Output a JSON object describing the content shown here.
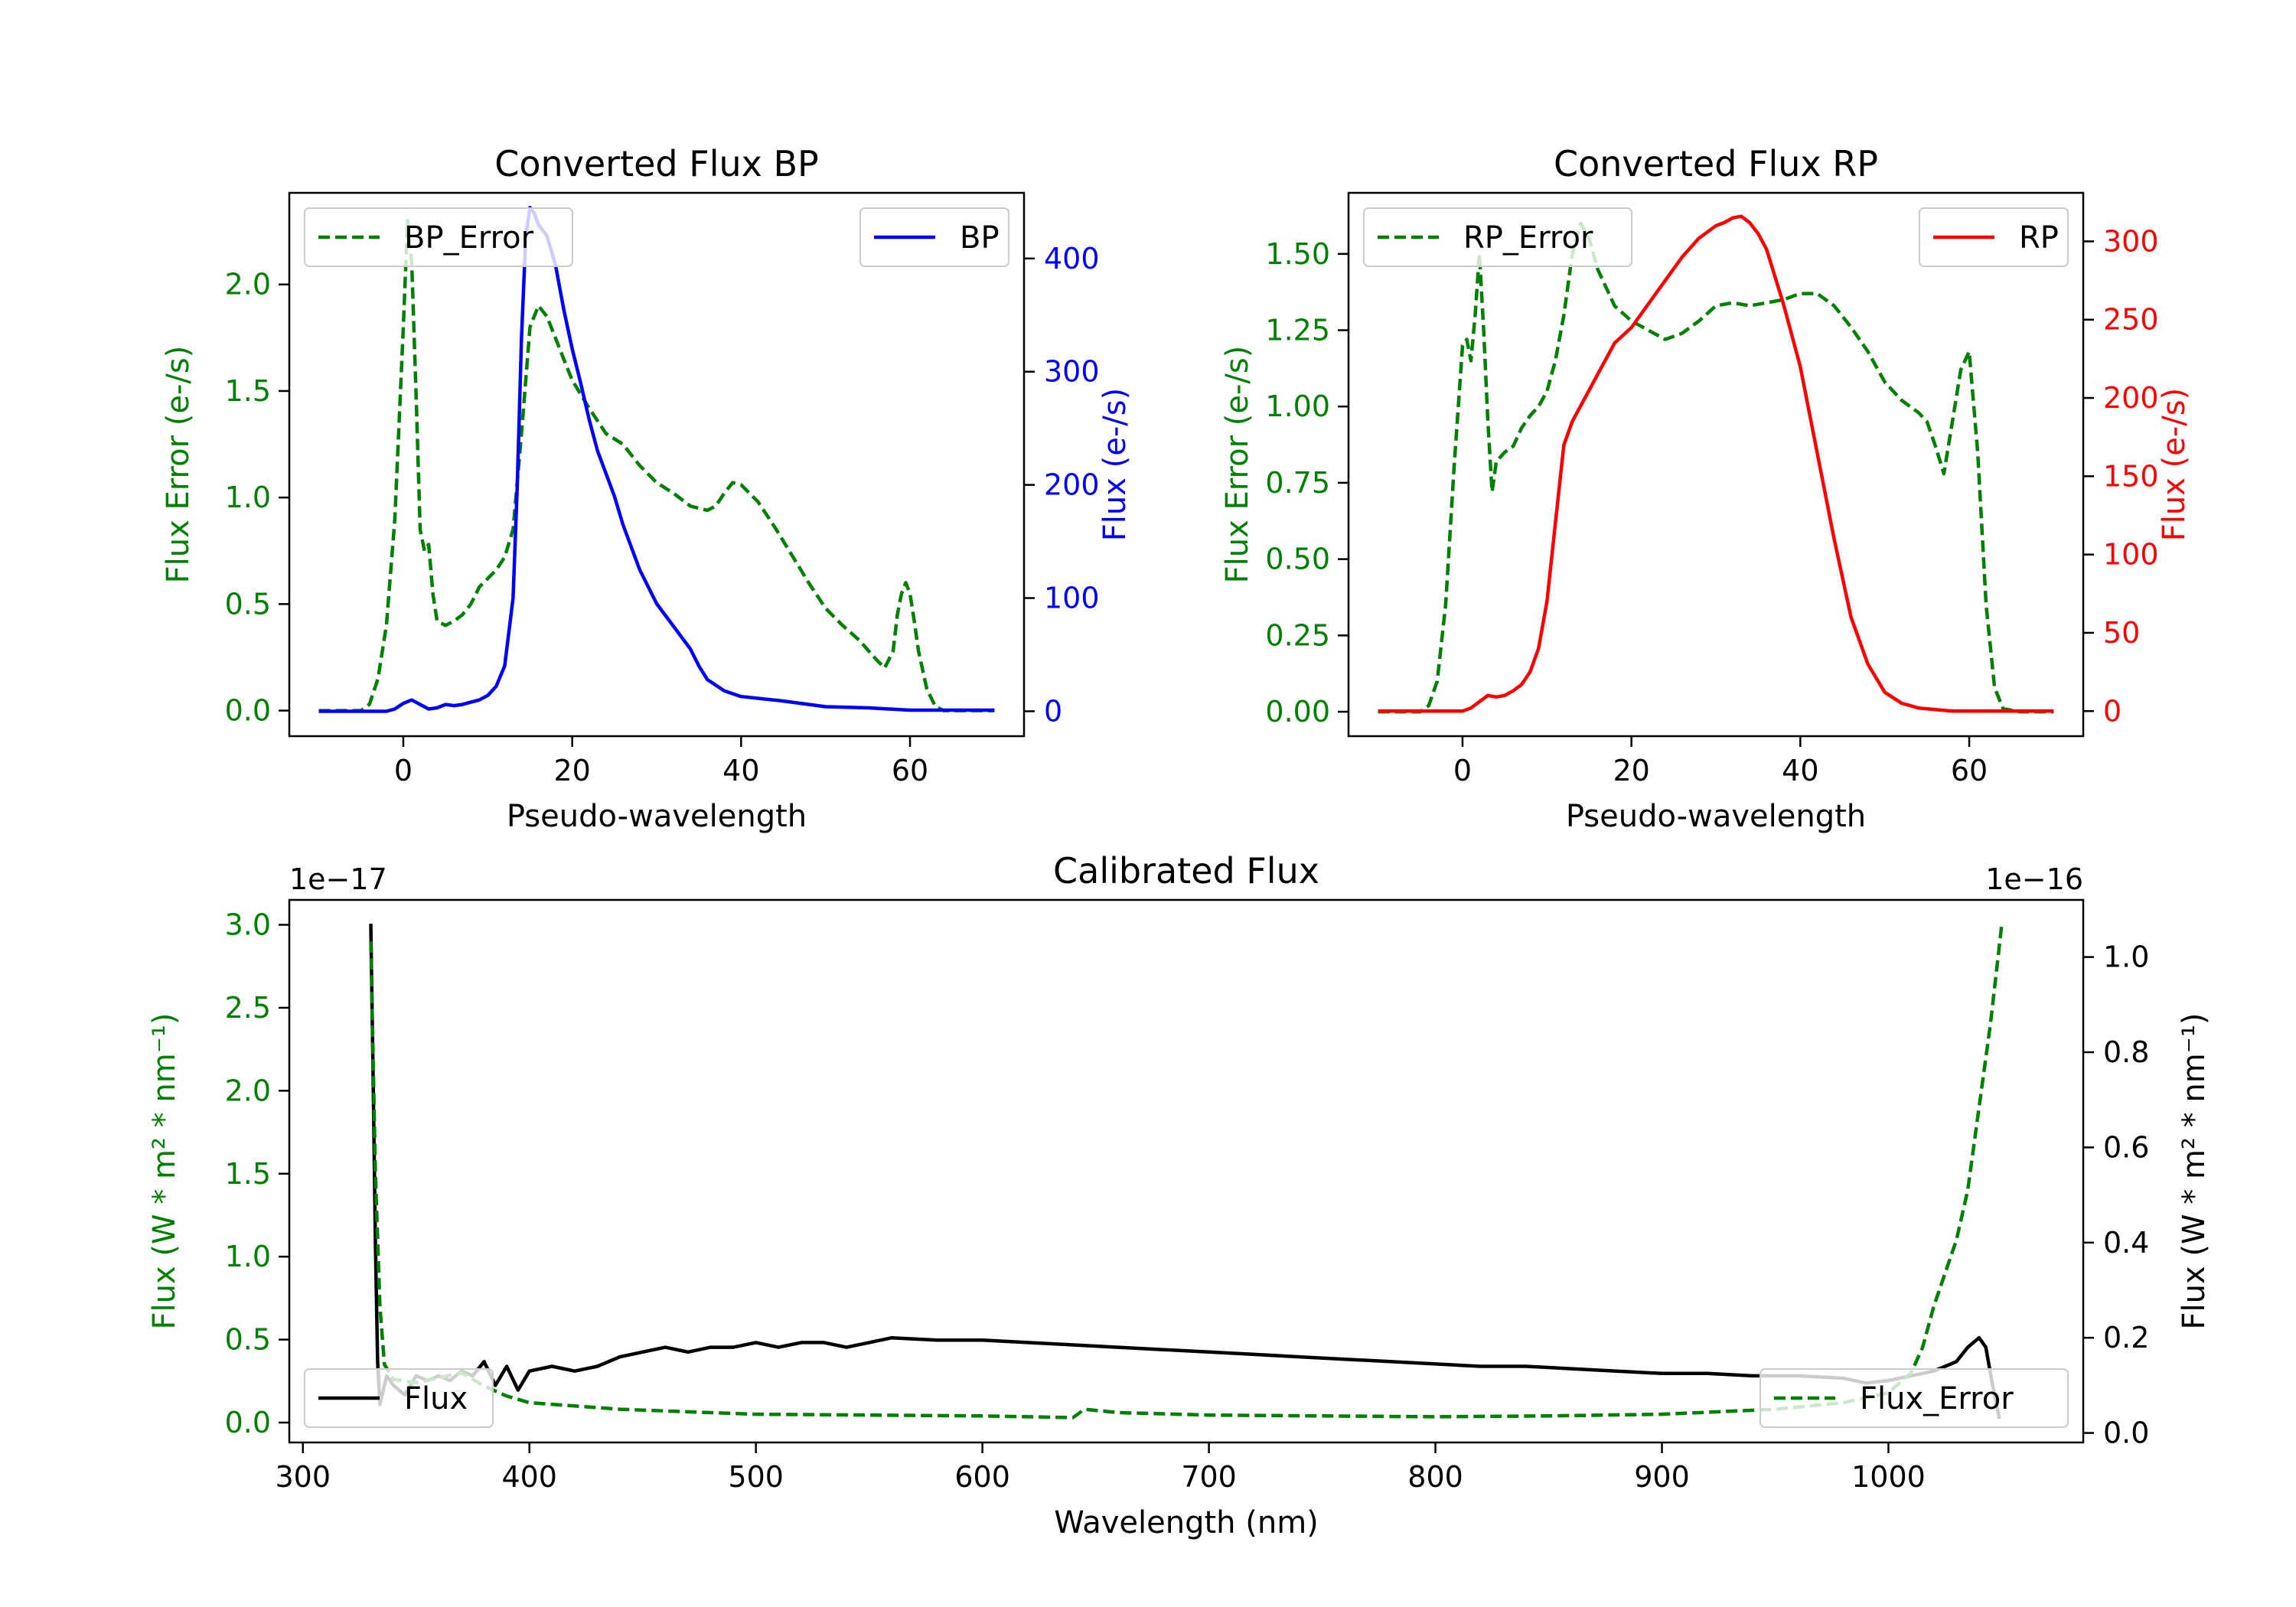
{
  "figure": {
    "background": "#ffffff"
  },
  "colors": {
    "error": "#008000",
    "bp": "#0000ff",
    "rp": "#ff0000",
    "flux": "#000000",
    "axis": "#000000"
  },
  "chart_data": [
    {
      "id": "bp",
      "type": "line",
      "title": "Converted Flux BP",
      "xlabel": "Pseudo-wavelength",
      "ylabel_left": "Flux Error (e-/s)",
      "ylabel_right": "Flux (e-/s)",
      "xlim": [
        -13.5,
        73.5
      ],
      "ylim_left": [
        -0.12,
        2.43
      ],
      "ylim_right": [
        -22,
        458
      ],
      "xticks": [
        0,
        20,
        40,
        60
      ],
      "yticks_left": [
        0.0,
        0.5,
        1.0,
        1.5,
        2.0
      ],
      "yticks_left_labels": [
        "0.0",
        "0.5",
        "1.0",
        "1.5",
        "2.0"
      ],
      "yticks_right": [
        0,
        100,
        200,
        300,
        400
      ],
      "yticks_right_labels": [
        "0",
        "100",
        "200",
        "300",
        "400"
      ],
      "left_color": "#008000",
      "right_color": "#0000ff",
      "legend_left": "top-left",
      "legend_right": "top-right",
      "series": [
        {
          "name": "BP_Error",
          "axis": "left",
          "style": "dashed",
          "color": "#008000",
          "x": [
            -10,
            -5,
            -4,
            -3,
            -2,
            -1,
            0,
            0.5,
            1,
            1.5,
            2,
            2.5,
            3,
            3.5,
            4,
            5,
            6,
            7,
            8,
            9,
            10,
            11,
            12,
            13,
            14,
            15,
            16,
            17,
            18,
            19,
            20,
            22,
            24,
            26,
            28,
            30,
            32,
            34,
            36,
            37,
            38,
            39,
            40,
            41,
            42,
            44,
            46,
            48,
            50,
            52,
            54,
            56,
            57,
            58,
            58.5,
            59,
            59.5,
            60,
            60.5,
            61,
            62,
            63,
            64,
            66,
            68,
            70
          ],
          "y": [
            0.0,
            0.0,
            0.03,
            0.15,
            0.4,
            0.9,
            1.8,
            2.3,
            2.1,
            1.5,
            0.85,
            0.75,
            0.78,
            0.55,
            0.42,
            0.4,
            0.42,
            0.45,
            0.5,
            0.58,
            0.62,
            0.66,
            0.72,
            0.85,
            1.3,
            1.8,
            1.9,
            1.85,
            1.75,
            1.65,
            1.55,
            1.42,
            1.3,
            1.25,
            1.15,
            1.07,
            1.02,
            0.96,
            0.94,
            0.96,
            1.02,
            1.07,
            1.06,
            1.02,
            0.98,
            0.86,
            0.73,
            0.6,
            0.48,
            0.4,
            0.33,
            0.24,
            0.2,
            0.28,
            0.45,
            0.55,
            0.6,
            0.55,
            0.42,
            0.28,
            0.1,
            0.02,
            0.0,
            0.0,
            0.0,
            0.0
          ]
        },
        {
          "name": "BP",
          "axis": "right",
          "style": "solid",
          "color": "#0000ff",
          "x": [
            -10,
            -2,
            -1,
            0,
            1,
            2,
            3,
            4,
            5,
            6,
            7,
            8,
            9,
            10,
            11,
            12,
            13,
            13.5,
            14,
            14.5,
            15,
            15.5,
            16,
            17,
            18,
            19,
            20,
            21,
            22,
            23,
            24,
            25,
            26,
            27,
            28,
            30,
            32,
            34,
            35,
            36,
            38,
            40,
            45,
            50,
            55,
            60,
            65,
            70
          ],
          "y": [
            0,
            0,
            2,
            7,
            10,
            6,
            2,
            3,
            6,
            5,
            6,
            8,
            10,
            14,
            22,
            40,
            100,
            200,
            330,
            420,
            445,
            440,
            430,
            420,
            395,
            355,
            320,
            290,
            258,
            230,
            210,
            190,
            165,
            145,
            125,
            95,
            75,
            55,
            40,
            28,
            18,
            13,
            9,
            4,
            3,
            1,
            1,
            1
          ]
        }
      ]
    },
    {
      "id": "rp",
      "type": "line",
      "title": "Converted Flux RP",
      "xlabel": "Pseudo-wavelength",
      "ylabel_left": "Flux Error (e-/s)",
      "ylabel_right": "Flux (e-/s)",
      "xlim": [
        -13.5,
        73.5
      ],
      "ylim_left": [
        -0.08,
        1.7
      ],
      "ylim_right": [
        -16,
        331
      ],
      "xticks": [
        0,
        20,
        40,
        60
      ],
      "yticks_left": [
        0.0,
        0.25,
        0.5,
        0.75,
        1.0,
        1.25,
        1.5
      ],
      "yticks_left_labels": [
        "0.00",
        "0.25",
        "0.50",
        "0.75",
        "1.00",
        "1.25",
        "1.50"
      ],
      "yticks_right": [
        0,
        50,
        100,
        150,
        200,
        250,
        300
      ],
      "yticks_right_labels": [
        "0",
        "50",
        "100",
        "150",
        "200",
        "250",
        "300"
      ],
      "left_color": "#008000",
      "right_color": "#ff0000",
      "legend_left": "top-left",
      "legend_right": "top-right",
      "series": [
        {
          "name": "RP_Error",
          "axis": "left",
          "style": "dashed",
          "color": "#008000",
          "x": [
            -10,
            -5,
            -4,
            -3,
            -2,
            -1,
            0,
            0.5,
            1,
            1.5,
            2,
            2.5,
            3,
            3.5,
            4,
            5,
            6,
            7,
            8,
            9,
            10,
            11,
            12,
            13,
            14,
            15,
            16,
            18,
            20,
            22,
            24,
            26,
            28,
            30,
            32,
            34,
            36,
            38,
            40,
            42,
            44,
            46,
            48,
            50,
            52,
            54,
            55,
            56,
            57,
            58,
            59,
            60,
            61,
            62,
            63,
            64,
            66,
            68,
            70
          ],
          "y": [
            0.0,
            0.0,
            0.02,
            0.1,
            0.35,
            0.8,
            1.2,
            1.22,
            1.15,
            1.3,
            1.5,
            1.25,
            0.95,
            0.72,
            0.82,
            0.85,
            0.87,
            0.93,
            0.97,
            1.0,
            1.05,
            1.15,
            1.3,
            1.5,
            1.6,
            1.55,
            1.45,
            1.33,
            1.28,
            1.25,
            1.22,
            1.24,
            1.28,
            1.33,
            1.34,
            1.33,
            1.34,
            1.35,
            1.37,
            1.37,
            1.33,
            1.26,
            1.18,
            1.08,
            1.02,
            0.98,
            0.95,
            0.87,
            0.78,
            0.95,
            1.12,
            1.18,
            0.85,
            0.35,
            0.08,
            0.01,
            0.0,
            0.0,
            0.0
          ]
        },
        {
          "name": "RP",
          "axis": "right",
          "style": "solid",
          "color": "#ff0000",
          "x": [
            -10,
            -2,
            0,
            1,
            2,
            3,
            4,
            5,
            6,
            7,
            8,
            9,
            10,
            11,
            12,
            13,
            14,
            15,
            16,
            18,
            20,
            22,
            24,
            26,
            28,
            30,
            31,
            32,
            33,
            34,
            35,
            36,
            38,
            40,
            42,
            44,
            46,
            48,
            50,
            52,
            54,
            56,
            58,
            60,
            65,
            70
          ],
          "y": [
            0,
            0,
            0,
            2,
            6,
            10,
            9,
            10,
            13,
            17,
            25,
            40,
            70,
            120,
            170,
            185,
            195,
            205,
            215,
            235,
            245,
            260,
            275,
            290,
            302,
            310,
            312,
            315,
            316,
            312,
            305,
            295,
            260,
            220,
            165,
            110,
            60,
            30,
            12,
            5,
            2,
            1,
            0,
            0,
            0,
            0
          ]
        }
      ]
    },
    {
      "id": "calibrated",
      "type": "line",
      "title": "Calibrated Flux",
      "xlabel": "Wavelength (nm)",
      "ylabel_left": "Flux (W * m² * nm⁻¹)",
      "ylabel_right": "Flux (W * m² * nm⁻¹)",
      "left_multiplier": "1e−17",
      "right_multiplier": "1e−16",
      "xlim": [
        294,
        1086
      ],
      "ylim_left": [
        -0.12,
        3.15
      ],
      "ylim_right": [
        -0.02,
        1.12
      ],
      "xticks": [
        300,
        400,
        500,
        600,
        700,
        800,
        900,
        1000
      ],
      "yticks_left": [
        0.0,
        0.5,
        1.0,
        1.5,
        2.0,
        2.5,
        3.0
      ],
      "yticks_left_labels": [
        "0.0",
        "0.5",
        "1.0",
        "1.5",
        "2.0",
        "2.5",
        "3.0"
      ],
      "yticks_right": [
        0.0,
        0.2,
        0.4,
        0.6,
        0.8,
        1.0
      ],
      "yticks_right_labels": [
        "0.0",
        "0.2",
        "0.4",
        "0.6",
        "0.8",
        "1.0"
      ],
      "left_color": "#008000",
      "right_color": "#000000",
      "legend_left": "lower-left",
      "legend_right": "lower-right",
      "series": [
        {
          "name": "Flux",
          "axis": "right",
          "style": "solid",
          "color": "#000000",
          "x": [
            330,
            331,
            332,
            333,
            334,
            335,
            337,
            340,
            345,
            350,
            355,
            360,
            365,
            370,
            375,
            380,
            385,
            390,
            395,
            400,
            410,
            420,
            430,
            440,
            450,
            460,
            470,
            480,
            490,
            500,
            510,
            520,
            530,
            540,
            550,
            560,
            580,
            600,
            620,
            640,
            660,
            680,
            700,
            720,
            740,
            760,
            780,
            800,
            820,
            840,
            860,
            880,
            900,
            920,
            940,
            960,
            980,
            990,
            1000,
            1010,
            1020,
            1030,
            1035,
            1040,
            1043,
            1046,
            1049
          ],
          "y": [
            1.07,
            0.75,
            0.4,
            0.15,
            0.06,
            0.08,
            0.12,
            0.1,
            0.08,
            0.12,
            0.11,
            0.12,
            0.11,
            0.13,
            0.12,
            0.15,
            0.1,
            0.14,
            0.09,
            0.13,
            0.14,
            0.13,
            0.14,
            0.16,
            0.17,
            0.18,
            0.17,
            0.18,
            0.18,
            0.19,
            0.18,
            0.19,
            0.19,
            0.18,
            0.19,
            0.2,
            0.195,
            0.195,
            0.19,
            0.185,
            0.18,
            0.175,
            0.17,
            0.165,
            0.16,
            0.155,
            0.15,
            0.145,
            0.14,
            0.14,
            0.135,
            0.13,
            0.125,
            0.125,
            0.12,
            0.12,
            0.115,
            0.105,
            0.11,
            0.12,
            0.13,
            0.15,
            0.18,
            0.2,
            0.18,
            0.1,
            0.03
          ]
        },
        {
          "name": "Flux_Error",
          "axis": "left",
          "style": "dashed",
          "color": "#008000",
          "x": [
            330,
            332,
            334,
            336,
            340,
            345,
            350,
            360,
            370,
            380,
            390,
            400,
            420,
            440,
            460,
            480,
            500,
            550,
            600,
            640,
            645,
            660,
            700,
            750,
            800,
            850,
            900,
            950,
            980,
            1000,
            1010,
            1015,
            1020,
            1025,
            1030,
            1035,
            1040,
            1045,
            1050
          ],
          "y": [
            2.9,
            1.5,
            0.7,
            0.35,
            0.26,
            0.25,
            0.24,
            0.27,
            0.3,
            0.22,
            0.16,
            0.12,
            0.1,
            0.08,
            0.07,
            0.06,
            0.05,
            0.045,
            0.04,
            0.03,
            0.08,
            0.06,
            0.045,
            0.04,
            0.035,
            0.04,
            0.05,
            0.08,
            0.12,
            0.18,
            0.3,
            0.45,
            0.7,
            0.9,
            1.1,
            1.4,
            1.9,
            2.4,
            3.0
          ]
        }
      ]
    }
  ]
}
